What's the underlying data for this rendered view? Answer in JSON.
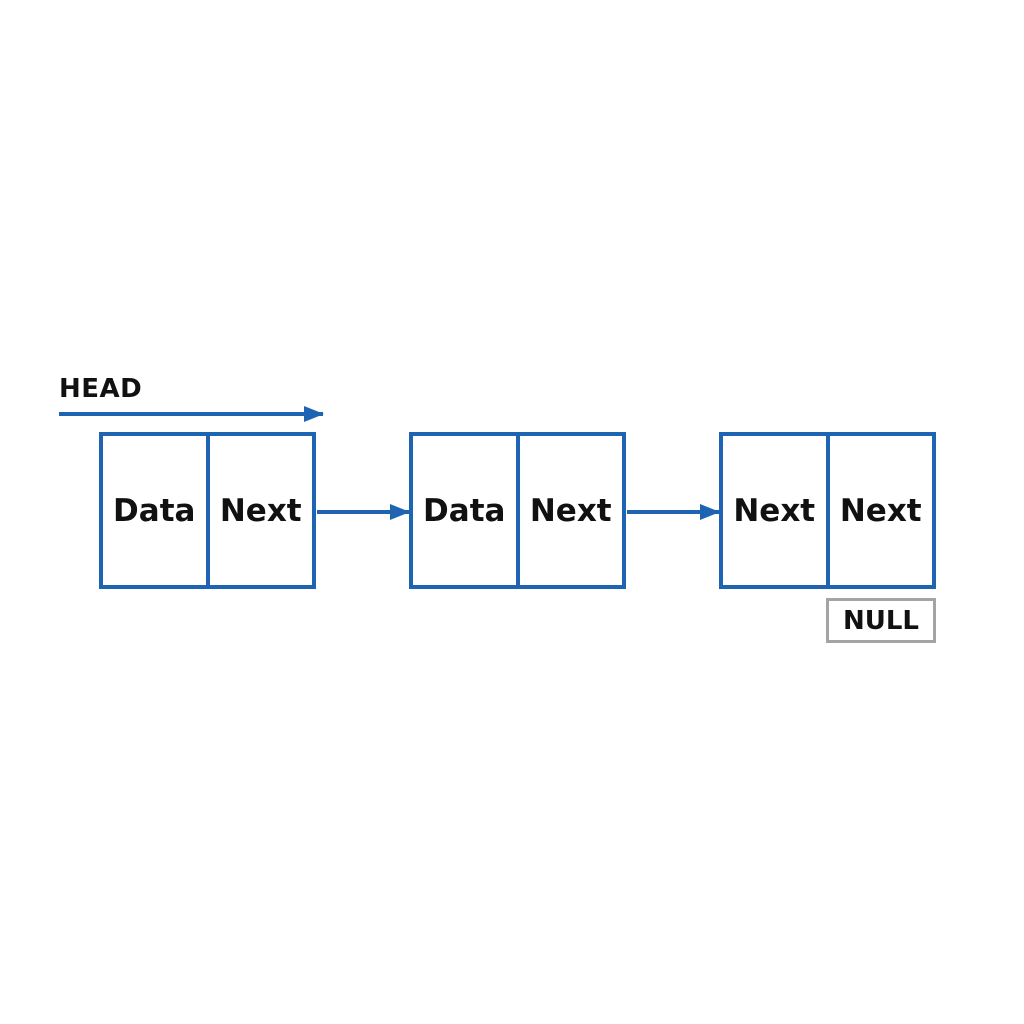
{
  "head": {
    "label": "HEAD"
  },
  "nodes": [
    {
      "left": "Data",
      "right": "Next"
    },
    {
      "left": "Data",
      "right": "Next"
    },
    {
      "left": "Next",
      "right": "Next"
    }
  ],
  "terminal": {
    "label": "NULL"
  },
  "colors": {
    "node_border": "#1f63b3",
    "arrow": "#1f63b3",
    "null_border": "#a4a4a4",
    "text": "#111111"
  }
}
